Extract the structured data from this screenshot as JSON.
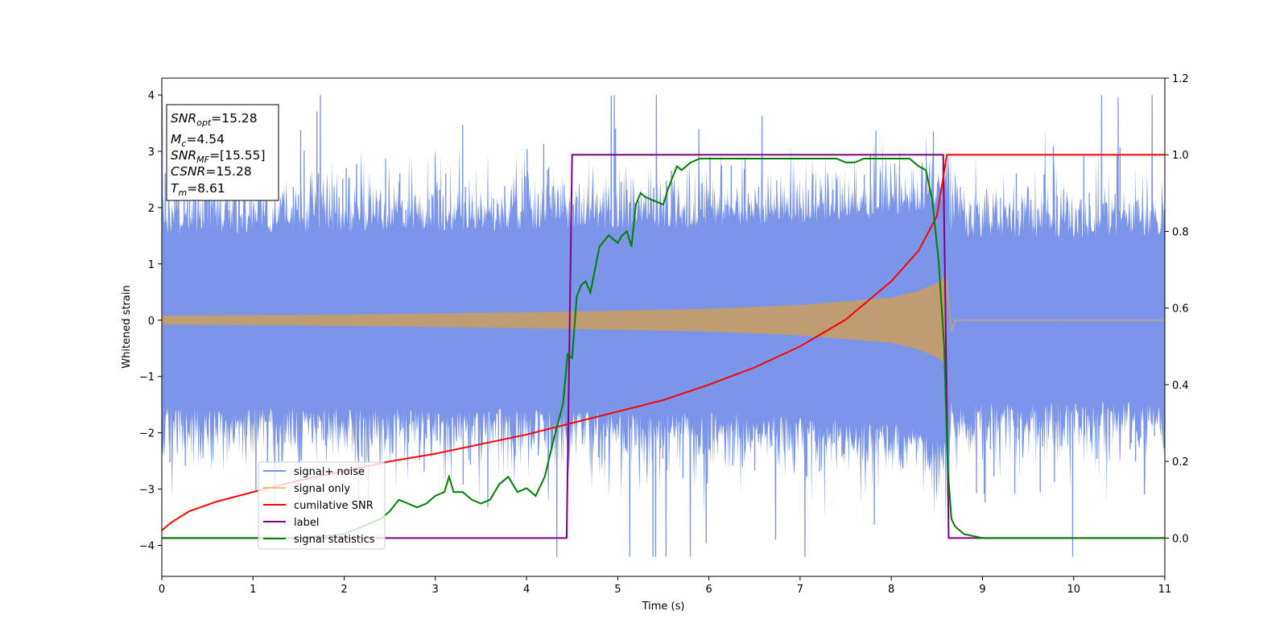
{
  "chart_data": {
    "type": "line",
    "xlabel": "Time (s)",
    "ylabel": "Whitened strain",
    "xlim": [
      0,
      11
    ],
    "ylim": [
      -4.55,
      4.3
    ],
    "y2lim": [
      -0.1,
      1.2
    ],
    "xticks": [
      "0",
      "1",
      "2",
      "3",
      "4",
      "5",
      "6",
      "7",
      "8",
      "9",
      "10",
      "11"
    ],
    "yticks": [
      "−4",
      "−3",
      "−2",
      "−1",
      "0",
      "1",
      "2",
      "3",
      "4"
    ],
    "y2ticks": [
      "0.0",
      "0.2",
      "0.4",
      "0.6",
      "0.8",
      "1.0",
      "1.2"
    ],
    "grid": false,
    "legend_position": "lower-left",
    "info_box": {
      "snr_opt": {
        "main": "SNR",
        "sub": "opt",
        "value": "=15.28"
      },
      "mc": {
        "main": "M",
        "sub": "c",
        "value": "=4.54"
      },
      "snr_mf": {
        "main": "SNR",
        "sub": "MF",
        "value": "=[15.55]"
      },
      "csnr": {
        "main": "CSNR",
        "value": "=15.28"
      },
      "tm": {
        "main": "T",
        "sub": "m",
        "value": "=8.61"
      }
    },
    "series": [
      {
        "name": "signal+ noise",
        "axis": "left",
        "color": "#7b96e8",
        "description_level": "white noise, std approx 0.9, peaks to about 3.9, merger near t=8.61"
      },
      {
        "name": "signal only",
        "axis": "left",
        "color": "#f5c07a",
        "envelope_points": [
          [
            0,
            0.08
          ],
          [
            2,
            0.1
          ],
          [
            4,
            0.14
          ],
          [
            6,
            0.2
          ],
          [
            7,
            0.27
          ],
          [
            8,
            0.4
          ],
          [
            8.3,
            0.52
          ],
          [
            8.5,
            0.66
          ],
          [
            8.61,
            0.8
          ],
          [
            8.65,
            0
          ]
        ]
      },
      {
        "name": "cumilative SNR",
        "axis": "right",
        "color": "#ff0000",
        "x": [
          0,
          0.1,
          0.3,
          0.6,
          1.0,
          1.5,
          2.0,
          2.5,
          3.0,
          3.5,
          4.0,
          4.5,
          5.0,
          5.5,
          6.0,
          6.5,
          7.0,
          7.5,
          8.0,
          8.3,
          8.5,
          8.61,
          11
        ],
        "y": [
          0.02,
          0.04,
          0.07,
          0.095,
          0.12,
          0.15,
          0.175,
          0.2,
          0.22,
          0.245,
          0.27,
          0.3,
          0.33,
          0.36,
          0.4,
          0.445,
          0.5,
          0.57,
          0.67,
          0.75,
          0.84,
          1.0,
          1.0
        ]
      },
      {
        "name": "label",
        "axis": "right",
        "color": "#800080",
        "x": [
          0,
          4.44,
          4.5,
          8.57,
          8.63,
          11
        ],
        "y": [
          0,
          0,
          1,
          1,
          0,
          0
        ]
      },
      {
        "name": "signal statistics",
        "axis": "right",
        "color": "#008000",
        "x": [
          0,
          1.5,
          2.0,
          2.2,
          2.4,
          2.5,
          2.6,
          2.7,
          2.8,
          2.9,
          3.0,
          3.1,
          3.15,
          3.2,
          3.3,
          3.4,
          3.5,
          3.6,
          3.7,
          3.8,
          3.9,
          4.0,
          4.05,
          4.1,
          4.2,
          4.3,
          4.4,
          4.45,
          4.5,
          4.55,
          4.6,
          4.65,
          4.7,
          4.8,
          4.9,
          5.0,
          5.05,
          5.1,
          5.15,
          5.2,
          5.25,
          5.3,
          5.4,
          5.5,
          5.55,
          5.6,
          5.65,
          5.7,
          5.8,
          5.9,
          6.0,
          6.2,
          6.5,
          6.7,
          6.8,
          7.0,
          7.1,
          7.2,
          7.3,
          7.4,
          7.5,
          7.6,
          7.7,
          7.8,
          8.0,
          8.2,
          8.3,
          8.38,
          8.45,
          8.52,
          8.58,
          8.62,
          8.66,
          8.7,
          8.8,
          9.0,
          11
        ],
        "y": [
          0,
          0.0,
          0.01,
          0.03,
          0.05,
          0.07,
          0.1,
          0.09,
          0.08,
          0.09,
          0.11,
          0.12,
          0.16,
          0.12,
          0.12,
          0.1,
          0.09,
          0.1,
          0.14,
          0.16,
          0.12,
          0.13,
          0.12,
          0.11,
          0.16,
          0.26,
          0.35,
          0.48,
          0.47,
          0.63,
          0.66,
          0.67,
          0.64,
          0.76,
          0.79,
          0.77,
          0.79,
          0.8,
          0.76,
          0.87,
          0.9,
          0.89,
          0.88,
          0.87,
          0.91,
          0.94,
          0.97,
          0.96,
          0.98,
          0.99,
          0.99,
          0.99,
          0.99,
          0.99,
          0.99,
          0.99,
          0.99,
          0.99,
          0.99,
          0.99,
          0.98,
          0.98,
          0.99,
          0.99,
          0.99,
          0.99,
          0.97,
          0.96,
          0.88,
          0.72,
          0.5,
          0.18,
          0.05,
          0.03,
          0.01,
          0.0,
          0.0
        ]
      }
    ]
  }
}
